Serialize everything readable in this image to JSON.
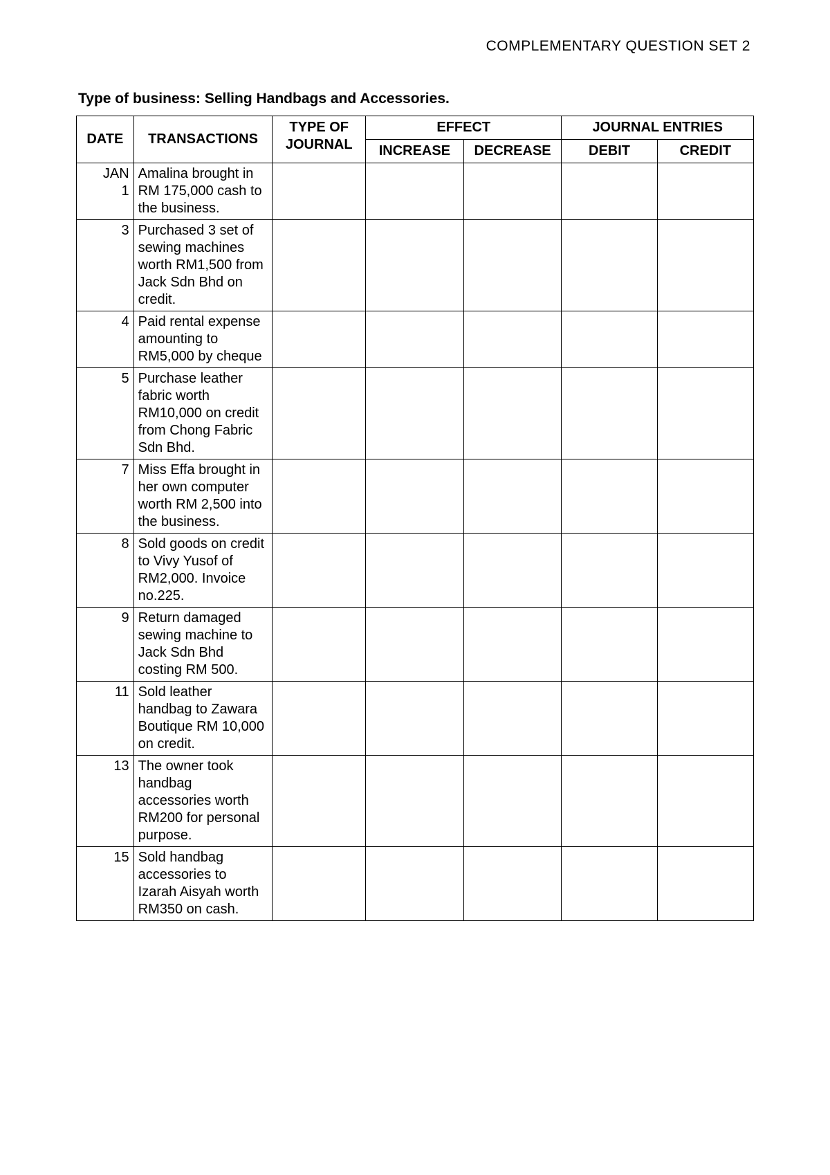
{
  "header": {
    "title": "COMPLEMENTARY QUESTION SET 2"
  },
  "business": {
    "label": "Type of business:",
    "value": "Selling Handbags and Accessories."
  },
  "table": {
    "columns": {
      "date": "DATE",
      "transactions": "TRANSACTIONS",
      "type_of_journal": "TYPE OF JOURNAL",
      "effect": "EFFECT",
      "increase": "INCREASE",
      "decrease": "DECREASE",
      "journal_entries": "JOURNAL ENTRIES",
      "debit": "DEBIT",
      "credit": "CREDIT"
    },
    "col_widths": {
      "date": 70,
      "transactions": 170,
      "type": 114,
      "increase": 120,
      "decrease": 120,
      "debit": 117,
      "credit": 118
    },
    "rows": [
      {
        "date_month": "JAN",
        "date_day": "1",
        "transaction": "Amalina brought in RM 175,000 cash to the business.",
        "type": "",
        "increase": "",
        "decrease": "",
        "debit": "",
        "credit": ""
      },
      {
        "date_month": "",
        "date_day": "3",
        "transaction": "Purchased 3 set of sewing machines worth RM1,500 from Jack Sdn Bhd on credit.",
        "type": "",
        "increase": "",
        "decrease": "",
        "debit": "",
        "credit": ""
      },
      {
        "date_month": "",
        "date_day": "4",
        "transaction": "Paid rental expense amounting to RM5,000 by cheque",
        "type": "",
        "increase": "",
        "decrease": "",
        "debit": "",
        "credit": ""
      },
      {
        "date_month": "",
        "date_day": "5",
        "transaction": "Purchase leather fabric worth RM10,000 on credit from Chong Fabric Sdn Bhd.",
        "type": "",
        "increase": "",
        "decrease": "",
        "debit": "",
        "credit": ""
      },
      {
        "date_month": "",
        "date_day": "7",
        "transaction": "Miss Effa brought in her own computer worth RM 2,500 into the business.",
        "type": "",
        "increase": "",
        "decrease": "",
        "debit": "",
        "credit": ""
      },
      {
        "date_month": "",
        "date_day": "8",
        "transaction": "Sold goods on credit to Vivy Yusof of RM2,000. Invoice no.225.",
        "type": "",
        "increase": "",
        "decrease": "",
        "debit": "",
        "credit": ""
      },
      {
        "date_month": "",
        "date_day": "9",
        "transaction": "Return damaged sewing machine to Jack Sdn Bhd costing RM 500.",
        "type": "",
        "increase": "",
        "decrease": "",
        "debit": "",
        "credit": ""
      },
      {
        "date_month": "",
        "date_day": "11",
        "transaction": "Sold leather handbag to Zawara Boutique RM 10,000 on credit.",
        "type": "",
        "increase": "",
        "decrease": "",
        "debit": "",
        "credit": ""
      },
      {
        "date_month": "",
        "date_day": "13",
        "transaction": "The owner took handbag accessories worth RM200 for personal purpose.",
        "type": "",
        "increase": "",
        "decrease": "",
        "debit": "",
        "credit": ""
      },
      {
        "date_month": "",
        "date_day": "15",
        "transaction": "Sold handbag accessories to Izarah Aisyah worth RM350 on cash.",
        "type": "",
        "increase": "",
        "decrease": "",
        "debit": "",
        "credit": ""
      }
    ]
  },
  "style": {
    "font_family": "Arial",
    "body_fontsize": 20,
    "header_fontsize": 21,
    "biz_fontsize": 21,
    "border_color": "#000000",
    "background_color": "#ffffff",
    "text_color": "#000000"
  }
}
